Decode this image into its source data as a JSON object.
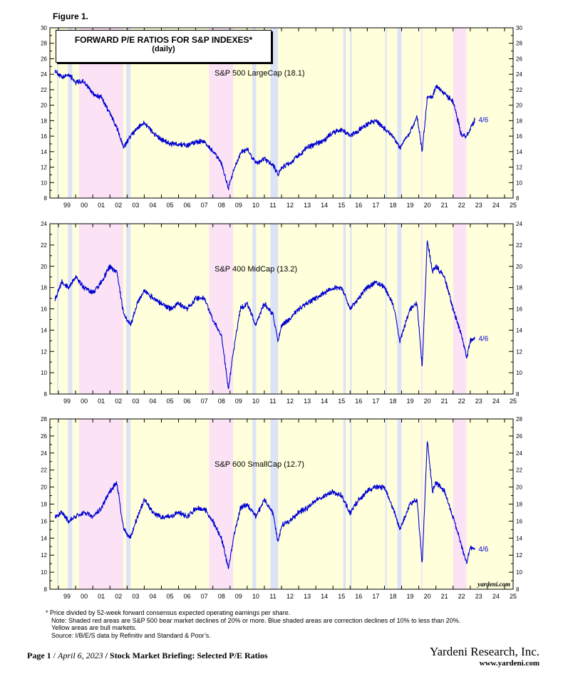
{
  "figure_label": "Figure 1.",
  "title_line1": "FORWARD P/E RATIOS FOR S&P INDEXES*",
  "title_line2": "(daily)",
  "credit": "yardeni.com",
  "year_labels": [
    "99",
    "00",
    "01",
    "02",
    "03",
    "04",
    "05",
    "06",
    "07",
    "08",
    "09",
    "10",
    "11",
    "12",
    "13",
    "14",
    "15",
    "16",
    "17",
    "18",
    "19",
    "20",
    "21",
    "22",
    "23",
    "24",
    "25"
  ],
  "colors": {
    "series": "#0000d0",
    "bull": "#ffffdc",
    "bear": "#fbe3f5",
    "correction": "#dde3f6"
  },
  "shading": {
    "bear": [
      [
        2000.2,
        2002.78
      ],
      [
        2007.78,
        2009.19
      ],
      [
        2020.13,
        2020.22
      ],
      [
        2022.0,
        2022.78
      ]
    ],
    "correction": [
      [
        1998.92,
        1999.0
      ],
      [
        1999.55,
        1999.8
      ],
      [
        2002.95,
        2003.2
      ],
      [
        2010.3,
        2010.52
      ],
      [
        2011.35,
        2011.8
      ],
      [
        2015.6,
        2015.75
      ],
      [
        2016.0,
        2016.1
      ],
      [
        2018.05,
        2018.12
      ],
      [
        2018.75,
        2019.0
      ]
    ]
  },
  "notes": [
    "*  Price divided by 52-week forward consensus expected operating earnings per share.",
    "Note: Shaded red areas are S&P 500 bear market declines of 20% or more.  Blue shaded areas are correction declines of 10% to less than 20%.",
    "Yellow areas are bull markets.",
    "Source: I/B/E/S data by Refinitiv and Standard & Poor’s."
  ],
  "footer": {
    "page": "Page 1",
    "date": "April 6, 2023",
    "report": "Stock Market Briefing: Selected P/E Ratios",
    "company": "Yardeni Research, Inc.",
    "url": "www.yardeni.com"
  },
  "chart_data": [
    {
      "type": "line",
      "series_label": "S&P 500 LargeCap (18.1)",
      "end_label": "4/6",
      "ylim": [
        8,
        30
      ],
      "y_ticks": [
        8,
        10,
        12,
        14,
        16,
        18,
        20,
        22,
        24,
        26,
        28,
        30
      ],
      "xlim": [
        1998.5,
        2025.5
      ],
      "x": [
        1998.8,
        1999.2,
        1999.6,
        2000.0,
        2000.5,
        2001.0,
        2001.5,
        2002.0,
        2002.5,
        2002.8,
        2003.2,
        2003.6,
        2004.0,
        2004.5,
        2005.0,
        2005.5,
        2006.0,
        2006.5,
        2007.0,
        2007.5,
        2008.0,
        2008.5,
        2008.9,
        2009.2,
        2009.6,
        2010.0,
        2010.5,
        2011.0,
        2011.5,
        2011.8,
        2012.0,
        2012.5,
        2013.0,
        2013.5,
        2014.0,
        2014.5,
        2015.0,
        2015.5,
        2016.0,
        2016.5,
        2017.0,
        2017.5,
        2018.0,
        2018.5,
        2018.9,
        2019.5,
        2019.9,
        2020.2,
        2020.5,
        2020.8,
        2021.0,
        2021.5,
        2022.0,
        2022.5,
        2022.8,
        2023.0,
        2023.27
      ],
      "y": [
        24.5,
        23.5,
        24.0,
        23.0,
        23.0,
        21.5,
        21.0,
        19.0,
        16.5,
        14.5,
        16.0,
        17.0,
        17.8,
        16.5,
        15.5,
        15.0,
        15.0,
        14.8,
        15.3,
        15.3,
        14.0,
        12.5,
        9.3,
        11.5,
        13.8,
        14.3,
        12.5,
        13.0,
        12.3,
        11.0,
        12.0,
        12.5,
        13.5,
        14.5,
        15.0,
        15.5,
        16.5,
        16.8,
        16.0,
        16.8,
        17.5,
        18.0,
        17.0,
        16.0,
        14.5,
        16.5,
        18.5,
        14.0,
        21.0,
        21.0,
        22.5,
        21.5,
        20.5,
        16.0,
        16.0,
        17.0,
        18.1
      ]
    },
    {
      "type": "line",
      "series_label": "S&P 400 MidCap (13.2)",
      "end_label": "4/6",
      "ylim": [
        8,
        24
      ],
      "y_ticks": [
        8,
        10,
        12,
        14,
        16,
        18,
        20,
        22,
        24
      ],
      "xlim": [
        1998.5,
        2025.5
      ],
      "x": [
        1998.8,
        1999.2,
        1999.6,
        2000.0,
        2000.5,
        2001.0,
        2001.5,
        2002.0,
        2002.4,
        2002.8,
        2003.2,
        2003.6,
        2004.0,
        2004.5,
        2005.0,
        2005.5,
        2006.0,
        2006.5,
        2007.0,
        2007.5,
        2008.0,
        2008.5,
        2008.9,
        2009.2,
        2009.6,
        2010.0,
        2010.5,
        2011.0,
        2011.5,
        2011.8,
        2012.0,
        2012.5,
        2013.0,
        2013.5,
        2014.0,
        2014.5,
        2015.0,
        2015.5,
        2016.0,
        2016.5,
        2017.0,
        2017.5,
        2018.0,
        2018.5,
        2018.9,
        2019.5,
        2019.9,
        2020.2,
        2020.5,
        2020.8,
        2021.0,
        2021.5,
        2022.0,
        2022.5,
        2022.8,
        2023.0,
        2023.27
      ],
      "y": [
        17.0,
        18.5,
        18.0,
        19.0,
        18.0,
        17.5,
        18.5,
        20.0,
        19.5,
        15.5,
        14.5,
        16.5,
        17.8,
        17.0,
        16.5,
        16.0,
        16.5,
        16.0,
        17.0,
        17.0,
        15.0,
        13.5,
        8.5,
        12.0,
        16.0,
        16.5,
        14.5,
        16.5,
        15.5,
        13.0,
        14.5,
        15.0,
        16.0,
        16.5,
        17.0,
        17.5,
        18.0,
        18.0,
        16.0,
        17.0,
        18.0,
        18.5,
        18.0,
        16.5,
        13.0,
        16.0,
        16.5,
        10.5,
        22.5,
        19.5,
        20.0,
        19.0,
        16.0,
        13.5,
        11.5,
        13.0,
        13.2
      ]
    },
    {
      "type": "line",
      "series_label": "S&P 600 SmallCap (12.7)",
      "end_label": "4/6",
      "ylim": [
        8,
        28
      ],
      "y_ticks": [
        8,
        10,
        12,
        14,
        16,
        18,
        20,
        22,
        24,
        26,
        28
      ],
      "xlim": [
        1998.5,
        2025.5
      ],
      "x": [
        1998.8,
        1999.2,
        1999.6,
        2000.0,
        2000.5,
        2001.0,
        2001.5,
        2002.0,
        2002.4,
        2002.8,
        2003.2,
        2003.6,
        2004.0,
        2004.5,
        2005.0,
        2005.5,
        2006.0,
        2006.5,
        2007.0,
        2007.5,
        2008.0,
        2008.5,
        2008.9,
        2009.2,
        2009.6,
        2010.0,
        2010.5,
        2011.0,
        2011.5,
        2011.8,
        2012.0,
        2012.5,
        2013.0,
        2013.5,
        2014.0,
        2014.5,
        2015.0,
        2015.5,
        2016.0,
        2016.5,
        2017.0,
        2017.5,
        2018.0,
        2018.5,
        2018.9,
        2019.5,
        2019.9,
        2020.2,
        2020.5,
        2020.8,
        2021.0,
        2021.5,
        2022.0,
        2022.5,
        2022.8,
        2023.0,
        2023.27
      ],
      "y": [
        16.5,
        17.0,
        16.0,
        16.5,
        17.0,
        16.5,
        17.5,
        19.5,
        20.5,
        15.0,
        14.0,
        16.5,
        18.5,
        17.0,
        16.5,
        16.5,
        17.0,
        16.5,
        17.5,
        17.5,
        16.0,
        14.0,
        10.5,
        14.0,
        17.5,
        18.0,
        16.5,
        18.5,
        17.0,
        13.5,
        15.5,
        16.0,
        17.0,
        17.5,
        18.5,
        19.0,
        19.5,
        19.0,
        17.0,
        18.5,
        19.5,
        20.0,
        20.0,
        17.5,
        15.0,
        18.0,
        18.5,
        11.0,
        25.5,
        19.5,
        20.5,
        19.5,
        16.5,
        13.0,
        11.0,
        13.0,
        12.7
      ]
    }
  ]
}
